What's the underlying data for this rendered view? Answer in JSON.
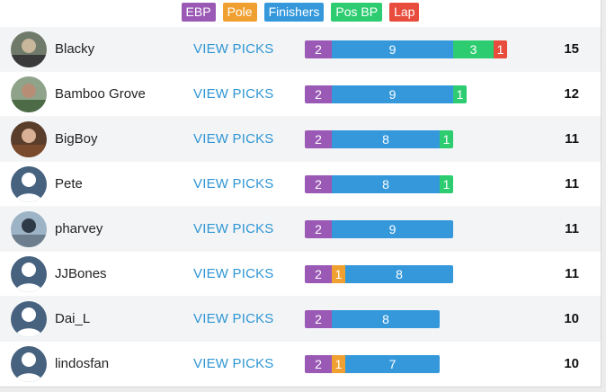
{
  "legend": [
    {
      "label": "EBP",
      "color": "#9b59b6"
    },
    {
      "label": "Pole",
      "color": "#f0a030"
    },
    {
      "label": "Finishers",
      "color": "#3498db"
    },
    {
      "label": "Pos BP",
      "color": "#2ecc71"
    },
    {
      "label": "Lap",
      "color": "#e74c3c"
    }
  ],
  "view_picks_label": "VIEW PICKS",
  "rows": [
    {
      "name": "Blacky",
      "avatar": "photo-mask-person",
      "segments": {
        "ebp": 2,
        "finishers": 9,
        "posbp": 3,
        "lap": 1
      },
      "total": "15"
    },
    {
      "name": "Bamboo Grove",
      "avatar": "photo-person-outdoors",
      "segments": {
        "ebp": 2,
        "finishers": 9,
        "posbp": 1
      },
      "total": "12"
    },
    {
      "name": "BigBoy",
      "avatar": "photo-person-portrait",
      "segments": {
        "ebp": 2,
        "finishers": 8,
        "posbp": 1
      },
      "total": "11"
    },
    {
      "name": "Pete",
      "avatar": "default-user-icon",
      "segments": {
        "ebp": 2,
        "finishers": 8,
        "posbp": 1
      },
      "total": "11"
    },
    {
      "name": "pharvey",
      "avatar": "photo-person-landscape",
      "segments": {
        "ebp": 2,
        "finishers": 9
      },
      "total": "11"
    },
    {
      "name": "JJBones",
      "avatar": "default-user-icon",
      "segments": {
        "ebp": 2,
        "pole": 1,
        "finishers": 8
      },
      "total": "11"
    },
    {
      "name": "Dai_L",
      "avatar": "default-user-icon",
      "segments": {
        "ebp": 2,
        "finishers": 8
      },
      "total": "10"
    },
    {
      "name": "lindosfan",
      "avatar": "default-user-icon",
      "segments": {
        "ebp": 2,
        "pole": 1,
        "finishers": 7
      },
      "total": "10"
    }
  ]
}
